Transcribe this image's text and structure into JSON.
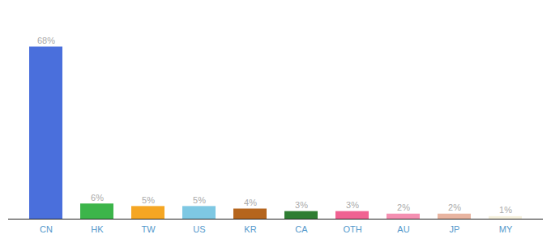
{
  "chart_data": {
    "type": "bar",
    "categories": [
      "CN",
      "HK",
      "TW",
      "US",
      "KR",
      "CA",
      "OTH",
      "AU",
      "JP",
      "MY"
    ],
    "values": [
      68,
      6,
      5,
      5,
      4,
      3,
      3,
      2,
      2,
      1
    ],
    "value_labels": [
      "68%",
      "6%",
      "5%",
      "5%",
      "4%",
      "3%",
      "3%",
      "2%",
      "2%",
      "1%"
    ],
    "colors": [
      "#4a6fdc",
      "#3cb54a",
      "#f5a623",
      "#7ec8e3",
      "#b5651d",
      "#2e7d32",
      "#f06292",
      "#f48fb1",
      "#e8b4a0",
      "#f5f0dc"
    ],
    "ylim": [
      0,
      80
    ],
    "data_labels": true,
    "tick_labels": "x"
  }
}
